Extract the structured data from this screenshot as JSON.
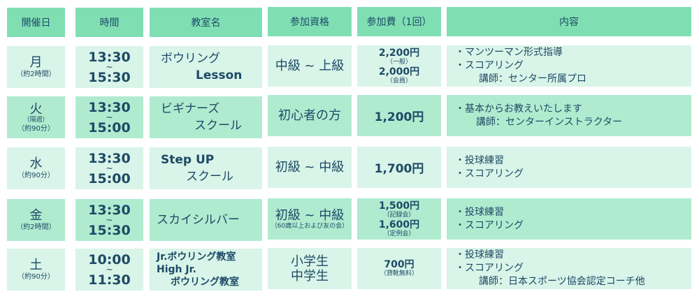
{
  "colors": {
    "header": "#7fdfb3",
    "row_light": "#d9f4e8",
    "row_mid": "#b0ebd0",
    "text": "#1d4a66"
  },
  "headers": [
    "開催日",
    "時間",
    "教室名",
    "参加資格",
    "参加費（1回）",
    "内容"
  ],
  "rows": [
    {
      "day": "月",
      "day_notes": [
        "（約2時間）"
      ],
      "start": "13:30",
      "tilde": "~",
      "end": "15:30",
      "name": [
        "ボウリング",
        "Lesson"
      ],
      "qual": "中級 ~ 上級",
      "qual_note": "",
      "fees": [
        {
          "price": "2,200円",
          "note": "（一般）"
        },
        {
          "price": "2,000円",
          "note": "（会員）"
        }
      ],
      "content": [
        "・マンツーマン形式指導",
        "・スコアリング",
        "講師：センター所属プロ"
      ]
    },
    {
      "day": "火",
      "day_notes": [
        "（隔週）",
        "（約90分）"
      ],
      "start": "13:30",
      "tilde": "~",
      "end": "15:00",
      "name": [
        "ビギナーズ",
        "スクール"
      ],
      "qual": "初心者の方",
      "qual_note": "",
      "fees": [
        {
          "price": "1,200円",
          "note": ""
        }
      ],
      "content": [
        "・基本からお教えいたします",
        "講師：センターインストラクター"
      ]
    },
    {
      "day": "水",
      "day_notes": [
        "（約90分）"
      ],
      "start": "13:30",
      "tilde": "~",
      "end": "15:00",
      "name": [
        "Step UP",
        "スクール"
      ],
      "qual": "初級 ~ 中級",
      "qual_note": "",
      "fees": [
        {
          "price": "1,700円",
          "note": ""
        }
      ],
      "content": [
        "・投球練習",
        "・スコアリング"
      ]
    },
    {
      "day": "金",
      "day_notes": [
        "（約2時間）"
      ],
      "start": "13:30",
      "tilde": "~",
      "end": "15:30",
      "name": [
        "スカイシルバー"
      ],
      "qual": "初級 ~ 中級",
      "qual_note": "（60歳以上および友の会）",
      "fees": [
        {
          "price": "1,500円",
          "note": "（記録会）"
        },
        {
          "price": "1,600円",
          "note": "（定例会）"
        }
      ],
      "content": [
        "・投球練習",
        "・スコアリング"
      ]
    },
    {
      "day": "土",
      "day_notes": [
        "（約90分）"
      ],
      "start": "10:00",
      "tilde": "~",
      "end": "11:30",
      "name": [
        "Jr.ボウリング教室",
        "High Jr.",
        "ボウリング教室"
      ],
      "qual": "小学生",
      "qual2": "中学生",
      "qual_note": "",
      "fees": [
        {
          "price": "700円",
          "note": "（貸靴無料）"
        }
      ],
      "content": [
        "・投球練習",
        "・スコアリング",
        "講師：日本スポーツ協会認定コーチ他"
      ]
    }
  ]
}
